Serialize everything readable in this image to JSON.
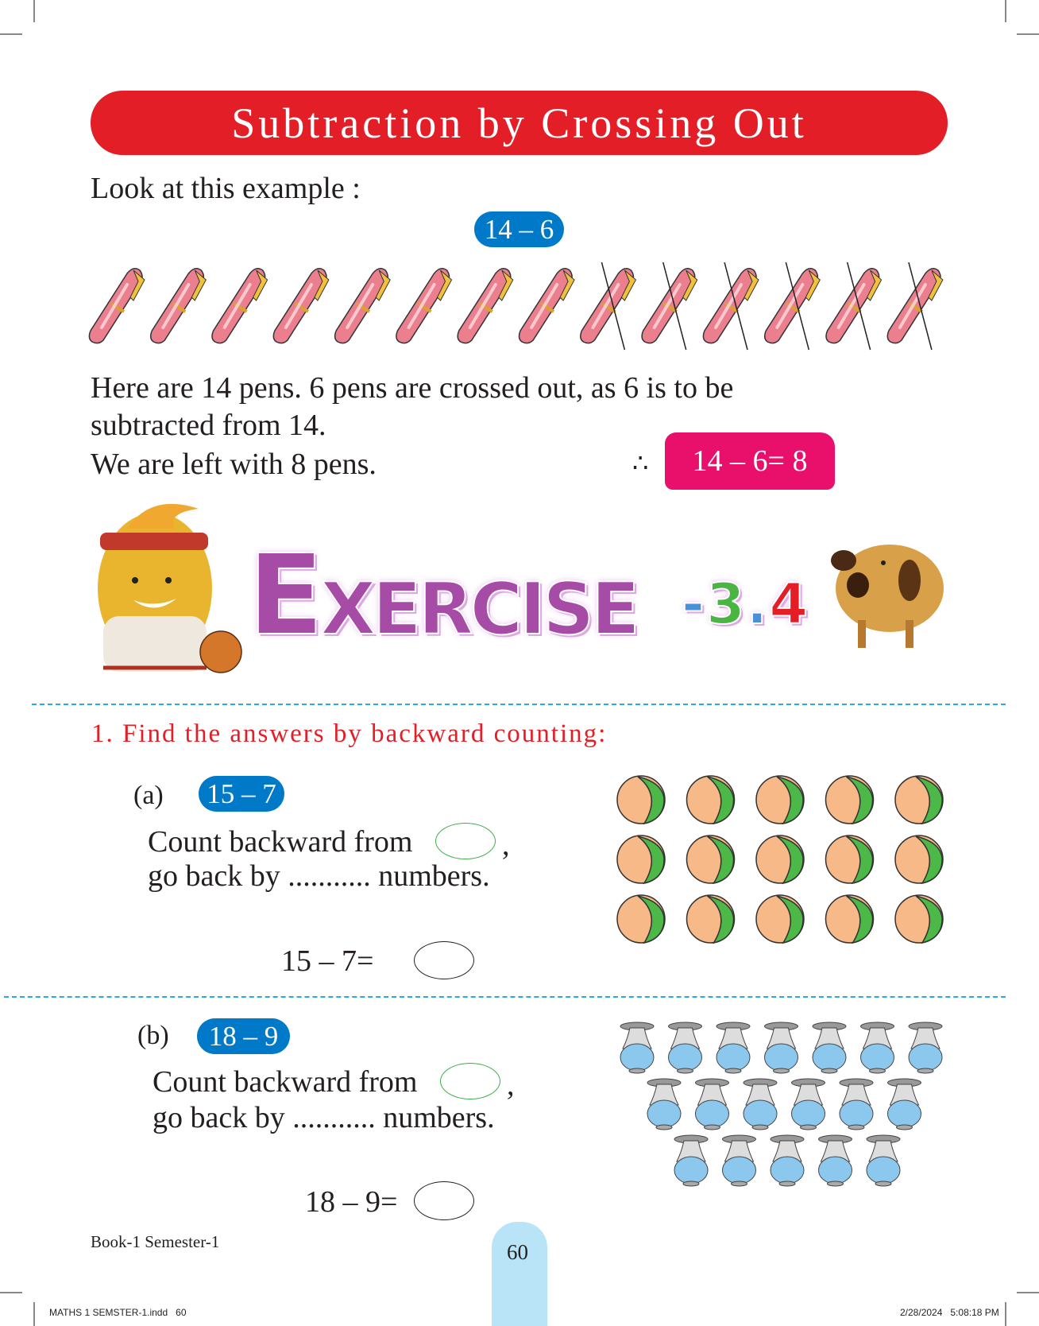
{
  "title": "Subtraction by Crossing Out",
  "intro": "Look at this example :",
  "example": {
    "expression": "14 – 6",
    "total_pens": 14,
    "crossed_out": 6,
    "lines": [
      "Here are 14 pens. 6 pens are crossed out, as 6 is to be",
      "subtracted from 14.",
      "We are left with 8 pens."
    ],
    "therefore": "∴",
    "result": "14 – 6= 8"
  },
  "exercise": {
    "word": "EXERCISE",
    "number_parts": [
      "-",
      "3",
      ".",
      "4"
    ]
  },
  "question": {
    "label": "1.  Find the answers by backward counting:",
    "parts": [
      {
        "label": "(a)",
        "expression": "15 – 7",
        "line1": "Count backward from",
        "comma": ",",
        "line2": "go back by ........... numbers.",
        "equation": "15 – 7=",
        "items": 15,
        "item_icon": "ball-icon"
      },
      {
        "label": "(b)",
        "expression": "18 – 9",
        "line1": "Count backward from",
        "comma": ",",
        "line2": "go back by ........... numbers.",
        "equation": "18 – 9=",
        "items": 18,
        "item_icon": "vase-icon"
      }
    ]
  },
  "footer": {
    "book": "Book-1 Semester-1",
    "page": "60",
    "file": "MATHS 1 SEMSTER-1.indd   60",
    "timestamp": "2/28/2024   5:08:18 PM"
  },
  "colors": {
    "banner": "#e31e26",
    "pill": "#0079c8",
    "result": "#e8106b",
    "dash": "#27a9e1",
    "tab": "#b9e4f8"
  }
}
